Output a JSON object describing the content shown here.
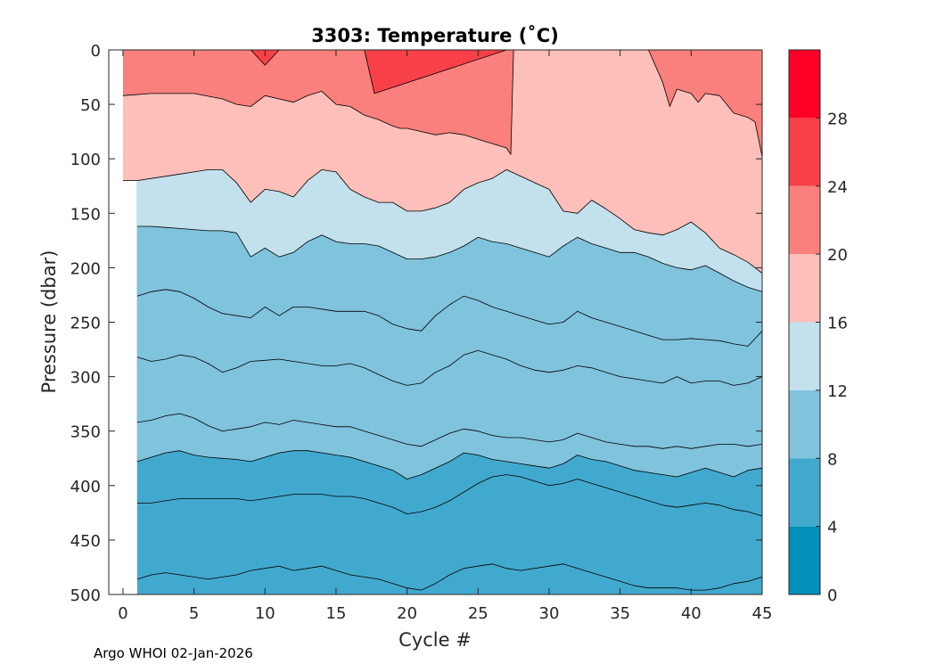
{
  "chart_data": {
    "type": "contour",
    "title": "3303:  Temperature (˚C)",
    "xlabel": "Cycle #",
    "ylabel": "Pressure (dbar)",
    "xlim": [
      -1,
      45
    ],
    "ylim": [
      0,
      500
    ],
    "y_reversed": true,
    "xticks": [
      0,
      5,
      10,
      15,
      20,
      25,
      30,
      35,
      40,
      45
    ],
    "yticks": [
      0,
      50,
      100,
      150,
      200,
      250,
      300,
      350,
      400,
      450,
      500
    ],
    "data_x_start": 1,
    "levels": [
      0,
      4,
      8,
      12,
      16,
      20,
      24,
      28,
      32
    ],
    "colorbar_ticks": [
      0,
      4,
      8,
      12,
      16,
      20,
      24,
      28
    ],
    "level_colors": [
      "#0090b8",
      "#42a9ce",
      "#80c3dd",
      "#c2e1ed",
      "#fcbfb9",
      "#f9807c",
      "#f84049",
      "#ff0026"
    ],
    "isolines": [
      {
        "temp": 24,
        "x": [
          9,
          10,
          11,
          14,
          17,
          17.7,
          27,
          27.5
        ],
        "p": [
          0,
          14,
          0,
          0,
          0,
          40,
          0,
          0
        ]
      },
      {
        "temp": 20,
        "x": [
          0,
          2,
          5,
          7,
          8,
          9,
          10,
          11,
          12,
          13,
          14,
          15,
          16,
          17,
          18,
          19,
          19.5,
          20,
          21,
          22,
          23,
          24,
          25,
          26,
          27,
          27.3,
          27.5,
          37,
          38,
          38.5,
          39,
          40,
          40.5,
          41,
          42,
          43,
          44,
          44.5,
          45
        ],
        "p": [
          42,
          40,
          40,
          45,
          50,
          52,
          42,
          45,
          48,
          42,
          38,
          50,
          52,
          60,
          64,
          70,
          72,
          72,
          75,
          78,
          76,
          78,
          82,
          86,
          90,
          96,
          0,
          0,
          30,
          52,
          36,
          40,
          48,
          40,
          42,
          58,
          62,
          66,
          98
        ]
      },
      {
        "temp": 16,
        "x": [
          0,
          1,
          2,
          3,
          4,
          5,
          6,
          7,
          8,
          9,
          10,
          11,
          12,
          13,
          14,
          15,
          16,
          17,
          18,
          19,
          20,
          21,
          22,
          23,
          24,
          25,
          26,
          27,
          28,
          29,
          30,
          31,
          32,
          33,
          34,
          35,
          36,
          37,
          38,
          39,
          40,
          41,
          42,
          43,
          44,
          45
        ],
        "p": [
          120,
          120,
          118,
          116,
          114,
          112,
          110,
          110,
          122,
          140,
          128,
          130,
          135,
          120,
          110,
          112,
          128,
          135,
          140,
          140,
          148,
          148,
          145,
          140,
          128,
          122,
          118,
          110,
          116,
          122,
          128,
          148,
          150,
          138,
          146,
          155,
          165,
          168,
          170,
          165,
          158,
          168,
          182,
          188,
          195,
          205
        ]
      },
      {
        "temp": 12,
        "x": [
          1,
          2,
          3,
          4,
          5,
          6,
          7,
          8,
          9,
          10,
          11,
          12,
          13,
          14,
          15,
          16,
          17,
          18,
          19,
          20,
          21,
          22,
          23,
          24,
          25,
          26,
          27,
          28,
          29,
          30,
          31,
          32,
          33,
          34,
          35,
          36,
          37,
          38,
          39,
          40,
          41,
          42,
          43,
          44,
          45
        ],
        "p": [
          162,
          162,
          163,
          164,
          165,
          166,
          166,
          168,
          190,
          182,
          190,
          186,
          176,
          170,
          176,
          178,
          178,
          180,
          186,
          192,
          192,
          190,
          186,
          180,
          172,
          176,
          178,
          182,
          186,
          190,
          180,
          172,
          178,
          182,
          186,
          186,
          190,
          196,
          200,
          202,
          198,
          205,
          212,
          218,
          222
        ]
      },
      {
        "temp": 11,
        "x": [
          1,
          2,
          3,
          4,
          5,
          6,
          7,
          8,
          9,
          10,
          11,
          12,
          13,
          14,
          15,
          16,
          17,
          18,
          19,
          20,
          21,
          22,
          23,
          24,
          25,
          26,
          27,
          28,
          29,
          30,
          31,
          32,
          33,
          34,
          35,
          36,
          37,
          38,
          39,
          40,
          41,
          42,
          43,
          44,
          45
        ],
        "p": [
          226,
          222,
          220,
          222,
          228,
          236,
          242,
          244,
          246,
          236,
          244,
          236,
          236,
          238,
          240,
          240,
          240,
          244,
          252,
          256,
          258,
          244,
          234,
          226,
          230,
          236,
          240,
          244,
          248,
          252,
          250,
          240,
          246,
          250,
          254,
          258,
          262,
          266,
          266,
          265,
          266,
          267,
          270,
          272,
          258
        ]
      },
      {
        "temp": 10,
        "x": [
          1,
          2,
          3,
          4,
          5,
          6,
          7,
          8,
          9,
          10,
          11,
          12,
          13,
          14,
          15,
          16,
          17,
          18,
          19,
          20,
          21,
          22,
          23,
          24,
          25,
          26,
          27,
          28,
          29,
          30,
          31,
          32,
          33,
          34,
          35,
          36,
          37,
          38,
          39,
          40,
          41,
          42,
          43,
          44,
          45
        ],
        "p": [
          282,
          286,
          284,
          280,
          282,
          288,
          296,
          292,
          286,
          285,
          284,
          286,
          288,
          290,
          290,
          288,
          292,
          298,
          304,
          308,
          306,
          296,
          290,
          280,
          276,
          280,
          284,
          290,
          294,
          296,
          294,
          290,
          292,
          296,
          300,
          302,
          304,
          306,
          300,
          306,
          304,
          304,
          308,
          306,
          300
        ]
      },
      {
        "temp": 9,
        "x": [
          1,
          2,
          3,
          4,
          5,
          6,
          7,
          8,
          9,
          10,
          11,
          12,
          13,
          14,
          15,
          16,
          17,
          18,
          19,
          20,
          21,
          22,
          23,
          24,
          25,
          26,
          27,
          28,
          29,
          30,
          31,
          32,
          33,
          34,
          35,
          36,
          37,
          38,
          39,
          40,
          41,
          42,
          43,
          44,
          45
        ],
        "p": [
          342,
          340,
          336,
          334,
          338,
          345,
          350,
          348,
          346,
          342,
          344,
          340,
          342,
          344,
          346,
          346,
          350,
          354,
          358,
          362,
          364,
          358,
          352,
          348,
          350,
          354,
          356,
          356,
          358,
          360,
          358,
          352,
          356,
          360,
          362,
          364,
          364,
          366,
          364,
          366,
          364,
          362,
          362,
          364,
          362
        ]
      },
      {
        "temp": 8,
        "x": [
          1,
          2,
          3,
          4,
          5,
          6,
          7,
          8,
          9,
          10,
          11,
          12,
          13,
          14,
          15,
          16,
          17,
          18,
          19,
          20,
          21,
          22,
          23,
          24,
          25,
          26,
          27,
          28,
          29,
          30,
          31,
          32,
          33,
          34,
          35,
          36,
          37,
          38,
          39,
          40,
          41,
          42,
          43,
          44,
          45
        ],
        "p": [
          378,
          374,
          370,
          368,
          372,
          374,
          375,
          376,
          378,
          374,
          370,
          368,
          368,
          370,
          372,
          374,
          378,
          382,
          386,
          394,
          390,
          384,
          378,
          370,
          372,
          376,
          378,
          380,
          382,
          384,
          380,
          372,
          376,
          378,
          382,
          386,
          388,
          390,
          392,
          388,
          384,
          388,
          392,
          386,
          384
        ]
      },
      {
        "temp": 7,
        "x": [
          1,
          2,
          3,
          4,
          5,
          6,
          7,
          8,
          9,
          10,
          11,
          12,
          13,
          14,
          15,
          16,
          17,
          18,
          19,
          20,
          21,
          22,
          23,
          24,
          25,
          26,
          27,
          28,
          29,
          30,
          31,
          32,
          33,
          34,
          35,
          36,
          37,
          38,
          39,
          40,
          41,
          42,
          43,
          44,
          45
        ],
        "p": [
          416,
          416,
          414,
          412,
          412,
          412,
          412,
          412,
          414,
          412,
          410,
          408,
          408,
          408,
          410,
          410,
          412,
          416,
          420,
          426,
          424,
          420,
          414,
          406,
          398,
          392,
          390,
          392,
          396,
          400,
          398,
          394,
          398,
          402,
          406,
          410,
          414,
          418,
          420,
          418,
          416,
          418,
          422,
          424,
          428
        ]
      },
      {
        "temp": 6,
        "x": [
          1,
          2,
          3,
          4,
          5,
          6,
          7,
          8,
          9,
          10,
          11,
          12,
          13,
          14,
          15,
          16,
          17,
          18,
          19,
          20,
          21,
          22,
          23,
          24,
          25,
          26,
          27,
          28,
          29,
          30,
          31,
          32,
          33,
          34,
          35,
          36,
          37,
          38,
          39,
          40,
          41,
          42,
          43,
          44,
          45
        ],
        "p": [
          486,
          482,
          480,
          482,
          484,
          486,
          484,
          482,
          478,
          476,
          474,
          478,
          476,
          474,
          478,
          482,
          484,
          486,
          490,
          494,
          496,
          490,
          482,
          476,
          474,
          472,
          476,
          478,
          476,
          474,
          472,
          476,
          480,
          484,
          488,
          492,
          494,
          494,
          494,
          496,
          496,
          494,
          490,
          488,
          484
        ]
      }
    ]
  },
  "footer": {
    "credit": "Argo WHOI 02-Jan-2026"
  }
}
